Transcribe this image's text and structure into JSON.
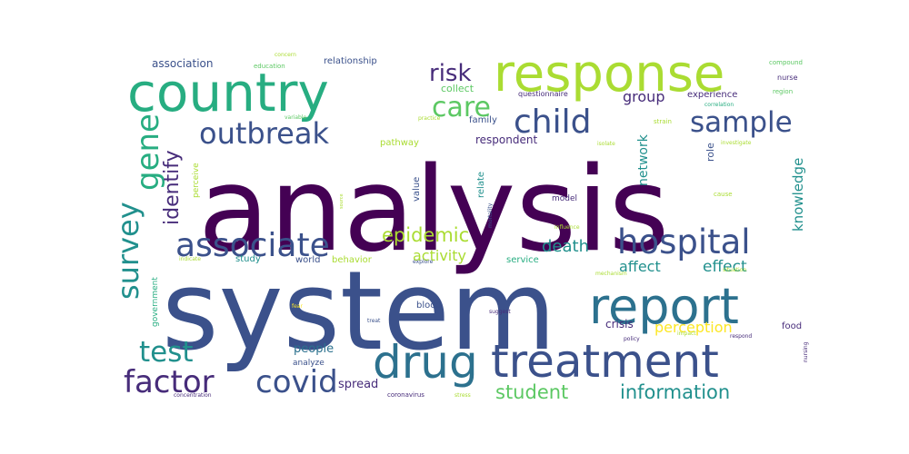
{
  "palette": {
    "dark_purple": "#440154",
    "purple": "#472c7a",
    "indigo": "#3b518b",
    "blue": "#2c718e",
    "teal": "#21908d",
    "green": "#27ad81",
    "light_green": "#5cc863",
    "lime": "#aadc32",
    "yellow": "#fde725"
  },
  "words": [
    {
      "text": "analysis",
      "color": "dark_purple",
      "orient": "h"
    },
    {
      "text": "system",
      "color": "indigo",
      "orient": "h"
    },
    {
      "text": "country",
      "color": "green",
      "orient": "h"
    },
    {
      "text": "response",
      "color": "lime",
      "orient": "h"
    },
    {
      "text": "report",
      "color": "blue",
      "orient": "h"
    },
    {
      "text": "treatment",
      "color": "indigo",
      "orient": "h"
    },
    {
      "text": "drug",
      "color": "blue",
      "orient": "h"
    },
    {
      "text": "hospital",
      "color": "indigo",
      "orient": "h"
    },
    {
      "text": "associate",
      "color": "indigo",
      "orient": "h"
    },
    {
      "text": "child",
      "color": "indigo",
      "orient": "h"
    },
    {
      "text": "sample",
      "color": "indigo",
      "orient": "h"
    },
    {
      "text": "outbreak",
      "color": "indigo",
      "orient": "h"
    },
    {
      "text": "covid",
      "color": "indigo",
      "orient": "h"
    },
    {
      "text": "factor",
      "color": "purple",
      "orient": "h"
    },
    {
      "text": "test",
      "color": "teal",
      "orient": "h"
    },
    {
      "text": "gene",
      "color": "green",
      "orient": "v"
    },
    {
      "text": "survey",
      "color": "teal",
      "orient": "v"
    },
    {
      "text": "care",
      "color": "light_green",
      "orient": "h"
    },
    {
      "text": "risk",
      "color": "purple",
      "orient": "h"
    },
    {
      "text": "identify",
      "color": "purple",
      "orient": "v"
    },
    {
      "text": "epidemic",
      "color": "lime",
      "orient": "h"
    },
    {
      "text": "student",
      "color": "light_green",
      "orient": "h"
    },
    {
      "text": "information",
      "color": "teal",
      "orient": "h"
    },
    {
      "text": "death",
      "color": "teal",
      "orient": "h"
    },
    {
      "text": "effect",
      "color": "teal",
      "orient": "h"
    },
    {
      "text": "affect",
      "color": "teal",
      "orient": "h"
    },
    {
      "text": "activity",
      "color": "lime",
      "orient": "h"
    },
    {
      "text": "perception",
      "color": "yellow",
      "orient": "h"
    },
    {
      "text": "group",
      "color": "purple",
      "orient": "h"
    },
    {
      "text": "knowledge",
      "color": "teal",
      "orient": "v"
    },
    {
      "text": "network",
      "color": "teal",
      "orient": "v"
    },
    {
      "text": "people",
      "color": "blue",
      "orient": "h"
    },
    {
      "text": "spread",
      "color": "purple",
      "orient": "h"
    },
    {
      "text": "crisis",
      "color": "purple",
      "orient": "h"
    },
    {
      "text": "respondent",
      "color": "purple",
      "orient": "h"
    },
    {
      "text": "association",
      "color": "indigo",
      "orient": "h"
    },
    {
      "text": "relationship",
      "color": "indigo",
      "orient": "h"
    },
    {
      "text": "collect",
      "color": "light_green",
      "orient": "h"
    },
    {
      "text": "family",
      "color": "indigo",
      "orient": "h"
    },
    {
      "text": "experience",
      "color": "purple",
      "orient": "h"
    },
    {
      "text": "pathway",
      "color": "lime",
      "orient": "h"
    },
    {
      "text": "relate",
      "color": "teal",
      "orient": "v"
    },
    {
      "text": "value",
      "color": "indigo",
      "orient": "v"
    },
    {
      "text": "role",
      "color": "indigo",
      "orient": "v"
    },
    {
      "text": "study",
      "color": "teal",
      "orient": "h"
    },
    {
      "text": "world",
      "color": "indigo",
      "orient": "h"
    },
    {
      "text": "behavior",
      "color": "lime",
      "orient": "h"
    },
    {
      "text": "service",
      "color": "green",
      "orient": "h"
    },
    {
      "text": "government",
      "color": "green",
      "orient": "v"
    },
    {
      "text": "blood",
      "color": "indigo",
      "orient": "h"
    },
    {
      "text": "analyze",
      "color": "indigo",
      "orient": "h"
    },
    {
      "text": "food",
      "color": "purple",
      "orient": "h"
    },
    {
      "text": "model",
      "color": "purple",
      "orient": "h"
    },
    {
      "text": "perceive",
      "color": "lime",
      "orient": "v"
    },
    {
      "text": "questionnaire",
      "color": "purple",
      "orient": "h"
    },
    {
      "text": "nurse",
      "color": "purple",
      "orient": "h"
    },
    {
      "text": "region",
      "color": "light_green",
      "orient": "h"
    },
    {
      "text": "compound",
      "color": "light_green",
      "orient": "h"
    },
    {
      "text": "concern",
      "color": "lime",
      "orient": "h"
    },
    {
      "text": "education",
      "color": "light_green",
      "orient": "h"
    },
    {
      "text": "variable",
      "color": "light_green",
      "orient": "h"
    },
    {
      "text": "practice",
      "color": "lime",
      "orient": "h"
    },
    {
      "text": "strain",
      "color": "lime",
      "orient": "h"
    },
    {
      "text": "correlation",
      "color": "green",
      "orient": "h"
    },
    {
      "text": "isolate",
      "color": "lime",
      "orient": "h"
    },
    {
      "text": "investigate",
      "color": "lime",
      "orient": "h"
    },
    {
      "text": "mortality",
      "color": "indigo",
      "orient": "v"
    },
    {
      "text": "source",
      "color": "lime",
      "orient": "v"
    },
    {
      "text": "cause",
      "color": "lime",
      "orient": "h"
    },
    {
      "text": "influence",
      "color": "lime",
      "orient": "h"
    },
    {
      "text": "indicate",
      "color": "lime",
      "orient": "h"
    },
    {
      "text": "explore",
      "color": "indigo",
      "orient": "h"
    },
    {
      "text": "mechanism",
      "color": "lime",
      "orient": "h"
    },
    {
      "text": "situation",
      "color": "lime",
      "orient": "h"
    },
    {
      "text": "fear",
      "color": "yellow",
      "orient": "h"
    },
    {
      "text": "treat",
      "color": "indigo",
      "orient": "h"
    },
    {
      "text": "suggest",
      "color": "purple",
      "orient": "h"
    },
    {
      "text": "impact",
      "color": "lime",
      "orient": "h"
    },
    {
      "text": "policy",
      "color": "purple",
      "orient": "h"
    },
    {
      "text": "respond",
      "color": "purple",
      "orient": "h"
    },
    {
      "text": "nursing",
      "color": "purple",
      "orient": "v"
    },
    {
      "text": "concentration",
      "color": "purple",
      "orient": "h"
    },
    {
      "text": "coronavirus",
      "color": "purple",
      "orient": "h"
    },
    {
      "text": "stress",
      "color": "lime",
      "orient": "h"
    }
  ]
}
